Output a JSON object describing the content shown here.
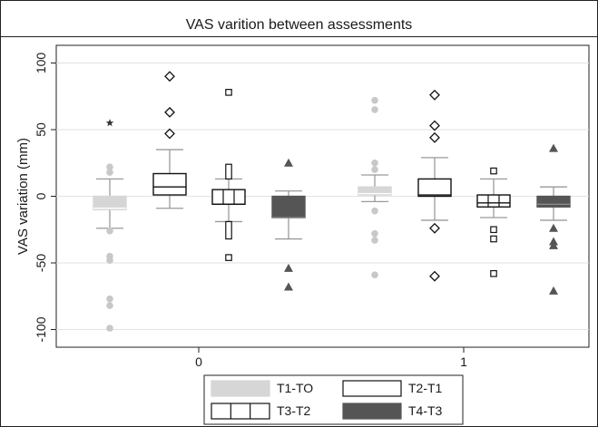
{
  "chart_data": {
    "type": "box",
    "title": "VAS varition between assessments",
    "xlabel": "",
    "ylabel": "VAS variation (mm)",
    "ylim": [
      -110,
      110
    ],
    "yticks": [
      -100,
      -50,
      0,
      50,
      100
    ],
    "grid": true,
    "legend_position": "bottom",
    "categories": [
      "0",
      "1"
    ],
    "series": [
      {
        "name": "T1-TO",
        "style": "light-gray-fill",
        "fill": "#d6d6d6",
        "groups": [
          {
            "q1": -10,
            "median": -9,
            "q3": 0,
            "whisker_low": -24,
            "whisker_high": 13,
            "outliers": [
              {
                "value": 55,
                "marker": "star"
              },
              {
                "value": 22,
                "marker": "circle"
              },
              {
                "value": 18,
                "marker": "circle"
              },
              {
                "value": -26,
                "marker": "circle"
              },
              {
                "value": -45,
                "marker": "circle"
              },
              {
                "value": -48,
                "marker": "circle"
              },
              {
                "value": -77,
                "marker": "circle"
              },
              {
                "value": -82,
                "marker": "circle"
              },
              {
                "value": -99,
                "marker": "circle"
              }
            ]
          },
          {
            "q1": 1,
            "median": 2,
            "q3": 7,
            "whisker_low": -4,
            "whisker_high": 16,
            "outliers": [
              {
                "value": 72,
                "marker": "circle"
              },
              {
                "value": 65,
                "marker": "circle"
              },
              {
                "value": 25,
                "marker": "circle"
              },
              {
                "value": 20,
                "marker": "circle"
              },
              {
                "value": -11,
                "marker": "circle"
              },
              {
                "value": -28,
                "marker": "circle"
              },
              {
                "value": -33,
                "marker": "circle"
              },
              {
                "value": -59,
                "marker": "circle"
              }
            ]
          }
        ]
      },
      {
        "name": "T2-T1",
        "style": "white-fill",
        "fill": "#ffffff",
        "groups": [
          {
            "q1": 1,
            "median": 7,
            "q3": 17,
            "whisker_low": -9,
            "whisker_high": 35,
            "outliers": [
              {
                "value": 90,
                "marker": "diamond"
              },
              {
                "value": 63,
                "marker": "diamond"
              },
              {
                "value": 47,
                "marker": "diamond"
              }
            ]
          },
          {
            "q1": 0,
            "median": 1,
            "q3": 13,
            "whisker_low": -18,
            "whisker_high": 29,
            "outliers": [
              {
                "value": 76,
                "marker": "diamond"
              },
              {
                "value": 53,
                "marker": "diamond"
              },
              {
                "value": 44,
                "marker": "diamond"
              },
              {
                "value": -24,
                "marker": "diamond"
              },
              {
                "value": -60,
                "marker": "diamond"
              }
            ]
          }
        ]
      },
      {
        "name": "T3-T2",
        "style": "white-fill-vertical-lines",
        "fill": "#ffffff",
        "groups": [
          {
            "q1": -6,
            "median": -6,
            "q3": 5,
            "whisker_low": -19,
            "whisker_high": 13,
            "outliers": [
              {
                "value": 78,
                "marker": "square"
              },
              {
                "value": -46,
                "marker": "square"
              }
            ],
            "extra_boxes": [
              [
                13,
                24
              ],
              [
                -32,
                -19
              ]
            ]
          },
          {
            "q1": -8,
            "median": -5,
            "q3": 1,
            "whisker_low": -16,
            "whisker_high": 13,
            "outliers": [
              {
                "value": 19,
                "marker": "square"
              },
              {
                "value": -25,
                "marker": "square"
              },
              {
                "value": -32,
                "marker": "square"
              },
              {
                "value": -58,
                "marker": "square"
              }
            ]
          }
        ]
      },
      {
        "name": "T4-T3",
        "style": "dark-gray-fill",
        "fill": "#5a5a5a",
        "groups": [
          {
            "q1": -16,
            "median": -16,
            "q3": 0,
            "whisker_low": -32,
            "whisker_high": 4,
            "outliers": [
              {
                "value": 25,
                "marker": "triangle"
              },
              {
                "value": -54,
                "marker": "triangle"
              },
              {
                "value": -68,
                "marker": "triangle"
              }
            ]
          },
          {
            "q1": -8,
            "median": -6,
            "q3": 0,
            "whisker_low": -18,
            "whisker_high": 7,
            "outliers": [
              {
                "value": 36,
                "marker": "triangle"
              },
              {
                "value": -24,
                "marker": "triangle"
              },
              {
                "value": -34,
                "marker": "triangle"
              },
              {
                "value": -37,
                "marker": "triangle"
              },
              {
                "value": -71,
                "marker": "triangle"
              }
            ]
          }
        ]
      }
    ]
  }
}
